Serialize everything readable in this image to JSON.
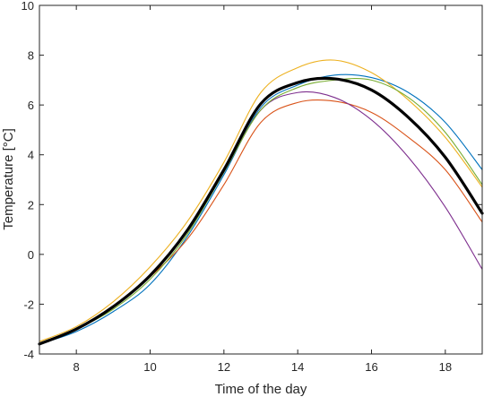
{
  "chart_data": {
    "type": "line",
    "xlabel": "Time of the day",
    "ylabel": "Temperature [°C]",
    "xlim": [
      7,
      19
    ],
    "ylim": [
      -4,
      10
    ],
    "xticks": [
      8,
      10,
      12,
      14,
      16,
      18
    ],
    "yticks": [
      -4,
      -2,
      0,
      2,
      4,
      6,
      8,
      10
    ],
    "grid": false,
    "series": [
      {
        "color": "#0072BD",
        "x": [
          7,
          8,
          9,
          10,
          11,
          12,
          13,
          14,
          15,
          16,
          17,
          18,
          19
        ],
        "values": [
          -3.6,
          -3.1,
          -2.3,
          -1.2,
          0.7,
          3.2,
          5.9,
          6.8,
          7.2,
          7.1,
          6.5,
          5.3,
          3.4
        ]
      },
      {
        "color": "#D95319",
        "x": [
          7,
          8,
          9,
          10,
          11,
          12,
          13,
          14,
          15,
          16,
          17,
          18,
          19
        ],
        "values": [
          -3.6,
          -3.0,
          -2.1,
          -0.9,
          0.6,
          2.8,
          5.3,
          6.1,
          6.15,
          5.7,
          4.7,
          3.4,
          1.3
        ]
      },
      {
        "color": "#EDB120",
        "x": [
          7,
          8,
          9,
          10,
          11,
          12,
          13,
          14,
          15,
          16,
          17,
          18,
          19
        ],
        "values": [
          -3.5,
          -2.9,
          -1.9,
          -0.5,
          1.3,
          3.7,
          6.5,
          7.5,
          7.8,
          7.3,
          6.2,
          4.7,
          2.7
        ]
      },
      {
        "color": "#7E2F8E",
        "x": [
          7,
          8,
          9,
          10,
          11,
          12,
          13,
          14,
          15,
          16,
          17,
          18,
          19
        ],
        "values": [
          -3.6,
          -3.0,
          -2.1,
          -0.8,
          0.9,
          3.3,
          5.8,
          6.5,
          6.3,
          5.4,
          3.9,
          1.9,
          -0.6
        ]
      },
      {
        "color": "#77AC30",
        "x": [
          7,
          8,
          9,
          10,
          11,
          12,
          13,
          14,
          15,
          16,
          17,
          18,
          19
        ],
        "values": [
          -3.6,
          -3.0,
          -2.2,
          -1.0,
          0.8,
          3.3,
          5.8,
          6.7,
          7.0,
          7.0,
          6.3,
          4.9,
          2.8
        ]
      },
      {
        "color": "#000000",
        "x": [
          7,
          8,
          9,
          10,
          11,
          12,
          13,
          14,
          15,
          16,
          17,
          18,
          19
        ],
        "values": [
          -3.6,
          -3.0,
          -2.1,
          -0.85,
          0.95,
          3.4,
          6.05,
          6.9,
          7.05,
          6.6,
          5.5,
          3.9,
          1.65
        ]
      }
    ]
  }
}
